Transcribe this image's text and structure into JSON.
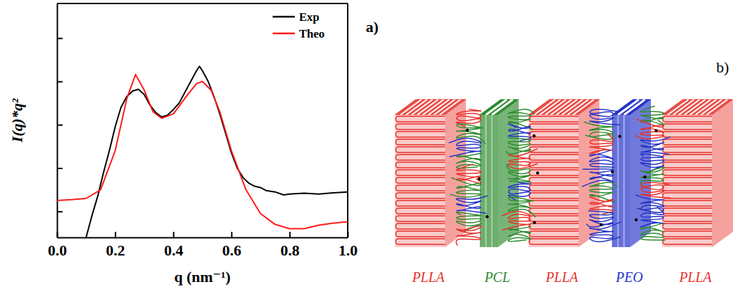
{
  "chart_data": {
    "type": "line",
    "title": "a)",
    "x_label": "q (nm⁻¹)",
    "y_label": "I(q)*q²",
    "xlim": [
      0,
      1.0
    ],
    "xticks": [
      {
        "value": 0,
        "label": "0.0"
      },
      {
        "value": 0.2,
        "label": "0.2"
      },
      {
        "value": 0.4,
        "label": "0.4"
      },
      {
        "value": 0.6,
        "label": "0.6"
      },
      {
        "value": 0.8,
        "label": "0.8"
      },
      {
        "value": 1.0,
        "label": "1.0"
      }
    ],
    "ylim": [
      0,
      5.4
    ],
    "yticks": [
      0.6,
      1.6,
      2.6,
      3.6,
      4.6
    ],
    "tick_labels": "x",
    "grid": false,
    "legend": "upper right",
    "series": [
      {
        "name": "Exp",
        "color": "#000000",
        "x": [
          0.1,
          0.12,
          0.14,
          0.16,
          0.18,
          0.2,
          0.22,
          0.24,
          0.26,
          0.28,
          0.3,
          0.32,
          0.34,
          0.36,
          0.38,
          0.4,
          0.42,
          0.44,
          0.46,
          0.48,
          0.49,
          0.5,
          0.52,
          0.54,
          0.56,
          0.58,
          0.6,
          0.62,
          0.64,
          0.66,
          0.68,
          0.7,
          0.72,
          0.75,
          0.78,
          0.8,
          0.85,
          0.9,
          0.95,
          1.0
        ],
        "values": [
          0.0,
          0.5,
          0.95,
          1.5,
          2.0,
          2.55,
          3.0,
          3.25,
          3.38,
          3.42,
          3.3,
          3.05,
          2.88,
          2.78,
          2.82,
          2.95,
          3.1,
          3.35,
          3.6,
          3.85,
          3.95,
          3.85,
          3.6,
          3.25,
          2.85,
          2.4,
          1.95,
          1.6,
          1.38,
          1.25,
          1.18,
          1.15,
          1.08,
          1.05,
          0.98,
          1.0,
          1.02,
          1.0,
          1.03,
          1.05
        ]
      },
      {
        "name": "Theo",
        "color": "#ff1a1a",
        "x": [
          0.0,
          0.05,
          0.1,
          0.15,
          0.2,
          0.24,
          0.27,
          0.3,
          0.33,
          0.36,
          0.4,
          0.45,
          0.48,
          0.5,
          0.53,
          0.56,
          0.6,
          0.65,
          0.7,
          0.75,
          0.8,
          0.85,
          0.9,
          0.95,
          1.0
        ],
        "values": [
          0.85,
          0.87,
          0.9,
          1.1,
          2.0,
          3.2,
          3.76,
          3.4,
          2.9,
          2.75,
          2.85,
          3.3,
          3.55,
          3.6,
          3.4,
          2.9,
          2.0,
          1.1,
          0.55,
          0.3,
          0.2,
          0.2,
          0.28,
          0.33,
          0.36
        ]
      }
    ]
  },
  "diagram": {
    "label": "b)",
    "layers": [
      {
        "label": "PLLA",
        "color": "#e8302a"
      },
      {
        "label": "PCL",
        "color": "#2e8b2e"
      },
      {
        "label": "PLLA",
        "color": "#e8302a"
      },
      {
        "label": "PEO",
        "color": "#2433c8"
      },
      {
        "label": "PLLA",
        "color": "#e8302a"
      }
    ]
  }
}
